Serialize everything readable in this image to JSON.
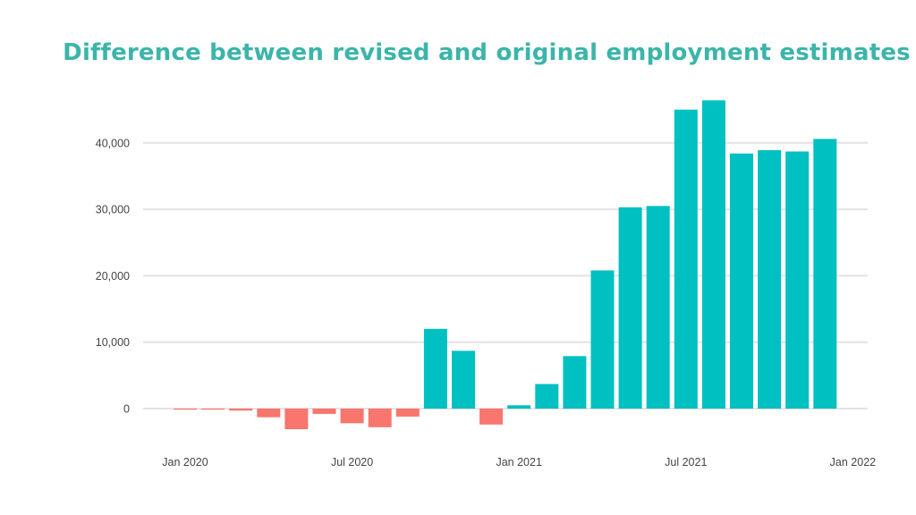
{
  "colors": {
    "title": "#3bb5a9",
    "positive": "#00c0c2",
    "negative": "#f8766d",
    "grid": "#e3e3e3",
    "text": "#444444"
  },
  "chart_data": {
    "type": "bar",
    "title": "Difference between revised and original employment estimates",
    "xlabel": "",
    "ylabel": "",
    "ylim": [
      -4000,
      46500
    ],
    "yticks": [
      0,
      10000,
      20000,
      30000,
      40000
    ],
    "ytick_labels": [
      "0",
      "10,000",
      "20,000",
      "30,000",
      "40,000"
    ],
    "xticks": [
      "2020-01",
      "2020-07",
      "2021-01",
      "2021-07",
      "2022-01"
    ],
    "xtick_labels": [
      "Jan 2020",
      "Jul 2020",
      "Jan 2021",
      "Jul 2021",
      "Jan 2022"
    ],
    "grid": true,
    "legend": "none",
    "categories": [
      "2020-01",
      "2020-02",
      "2020-03",
      "2020-04",
      "2020-05",
      "2020-06",
      "2020-07",
      "2020-08",
      "2020-09",
      "2020-10",
      "2020-11",
      "2020-12",
      "2021-01",
      "2021-02",
      "2021-03",
      "2021-04",
      "2021-05",
      "2021-06",
      "2021-07",
      "2021-08",
      "2021-09",
      "2021-10",
      "2021-11",
      "2021-12"
    ],
    "values": [
      -100,
      -150,
      -300,
      -1300,
      -3100,
      -800,
      -2200,
      -2800,
      -1200,
      12000,
      8700,
      -2400,
      500,
      3700,
      7900,
      20800,
      30300,
      30500,
      45000,
      46400,
      38400,
      38900,
      38700,
      40600
    ]
  }
}
